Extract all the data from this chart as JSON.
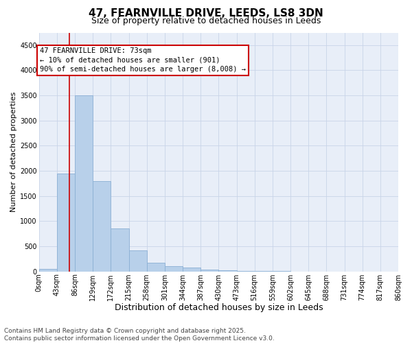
{
  "title": "47, FEARNVILLE DRIVE, LEEDS, LS8 3DN",
  "subtitle": "Size of property relative to detached houses in Leeds",
  "xlabel": "Distribution of detached houses by size in Leeds",
  "ylabel": "Number of detached properties",
  "bin_labels": [
    "0sqm",
    "43sqm",
    "86sqm",
    "129sqm",
    "172sqm",
    "215sqm",
    "258sqm",
    "301sqm",
    "344sqm",
    "387sqm",
    "430sqm",
    "473sqm",
    "516sqm",
    "559sqm",
    "602sqm",
    "645sqm",
    "688sqm",
    "731sqm",
    "774sqm",
    "817sqm",
    "860sqm"
  ],
  "bin_edges": [
    0,
    43,
    86,
    129,
    172,
    215,
    258,
    301,
    344,
    387,
    430,
    473,
    516,
    559,
    602,
    645,
    688,
    731,
    774,
    817,
    860
  ],
  "bar_heights": [
    50,
    1950,
    3500,
    1800,
    850,
    420,
    170,
    110,
    75,
    40,
    20,
    10,
    5,
    3,
    2,
    1,
    1,
    0,
    0,
    0
  ],
  "bar_color": "#b8d0ea",
  "bar_edge_color": "#8aafd4",
  "property_value": 73,
  "property_line_color": "#cc0000",
  "annotation_line1": "47 FEARNVILLE DRIVE: 73sqm",
  "annotation_line2": "← 10% of detached houses are smaller (901)",
  "annotation_line3": "90% of semi-detached houses are larger (8,008) →",
  "annotation_box_facecolor": "#ffffff",
  "annotation_box_edgecolor": "#cc0000",
  "ylim": [
    0,
    4750
  ],
  "yticks": [
    0,
    500,
    1000,
    1500,
    2000,
    2500,
    3000,
    3500,
    4000,
    4500
  ],
  "grid_color": "#c8d4e8",
  "background_color": "#e8eef8",
  "footer_line1": "Contains HM Land Registry data © Crown copyright and database right 2025.",
  "footer_line2": "Contains public sector information licensed under the Open Government Licence v3.0.",
  "title_fontsize": 11,
  "subtitle_fontsize": 9,
  "xlabel_fontsize": 9,
  "ylabel_fontsize": 8,
  "tick_fontsize": 7,
  "annotation_fontsize": 7.5,
  "footer_fontsize": 6.5
}
